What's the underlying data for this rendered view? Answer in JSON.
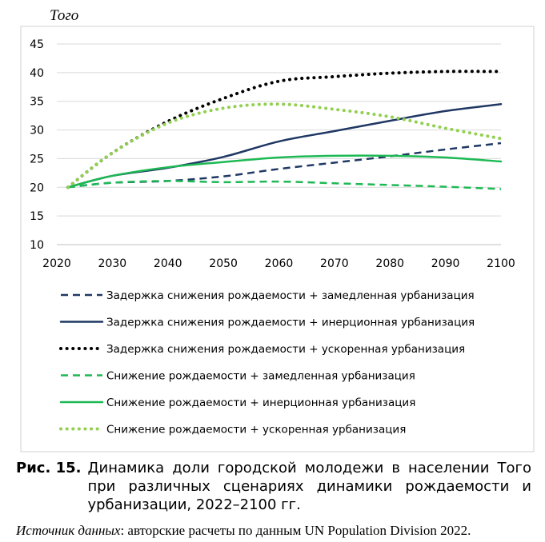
{
  "chart_data": {
    "type": "line",
    "title": "Того",
    "x": [
      2022,
      2030,
      2040,
      2050,
      2060,
      2070,
      2080,
      2090,
      2100
    ],
    "xlim": [
      2020,
      2100
    ],
    "ylim": [
      10,
      45
    ],
    "x_ticks": [
      2020,
      2030,
      2040,
      2050,
      2060,
      2070,
      2080,
      2090,
      2100
    ],
    "y_ticks": [
      10,
      15,
      20,
      25,
      30,
      35,
      40,
      45
    ],
    "grid": "horizontal",
    "legend_position": "bottom",
    "series": [
      {
        "name": "Задержка снижения рождаемости + замедленная урбанизация",
        "color": "#1f3864",
        "style": "dashed",
        "values": [
          20.0,
          20.8,
          21.1,
          21.9,
          23.2,
          24.3,
          25.4,
          26.6,
          27.7
        ]
      },
      {
        "name": "Задержка снижения рождаемости + инерционная урбанизация",
        "color": "#1f3864",
        "style": "solid",
        "values": [
          20.0,
          22.0,
          23.4,
          25.3,
          28.0,
          29.8,
          31.6,
          33.3,
          34.5
        ]
      },
      {
        "name": "Задержка снижения рождаемости + ускоренная урбанизация",
        "color": "#000000",
        "style": "dotted",
        "values": [
          20.0,
          26.0,
          31.5,
          35.5,
          38.5,
          39.3,
          39.9,
          40.2,
          40.2
        ]
      },
      {
        "name": "Снижение рождаемости + замедленная урбанизация",
        "color": "#1db954",
        "style": "dashed",
        "values": [
          20.0,
          20.8,
          21.1,
          20.9,
          21.0,
          20.7,
          20.4,
          20.1,
          19.7
        ]
      },
      {
        "name": "Снижение рождаемости + инерционная урбанизация",
        "color": "#1db954",
        "style": "solid",
        "values": [
          20.0,
          22.0,
          23.5,
          24.4,
          25.2,
          25.5,
          25.5,
          25.2,
          24.5
        ]
      },
      {
        "name": "Снижение рождаемости + ускоренная урбанизация",
        "color": "#92d050",
        "style": "dotted",
        "values": [
          20.0,
          26.0,
          31.2,
          33.8,
          34.5,
          33.6,
          32.3,
          30.3,
          28.5
        ]
      }
    ]
  },
  "caption": {
    "number": "Рис. 15.",
    "text": "Динамика доли городской молодежи в населении Того при различных сценариях динамики рождаемости и урбанизации, 2022–2100 гг."
  },
  "source": {
    "label": "Источник данных",
    "text": ": авторские расчеты по данным UN Population Division 2022."
  }
}
